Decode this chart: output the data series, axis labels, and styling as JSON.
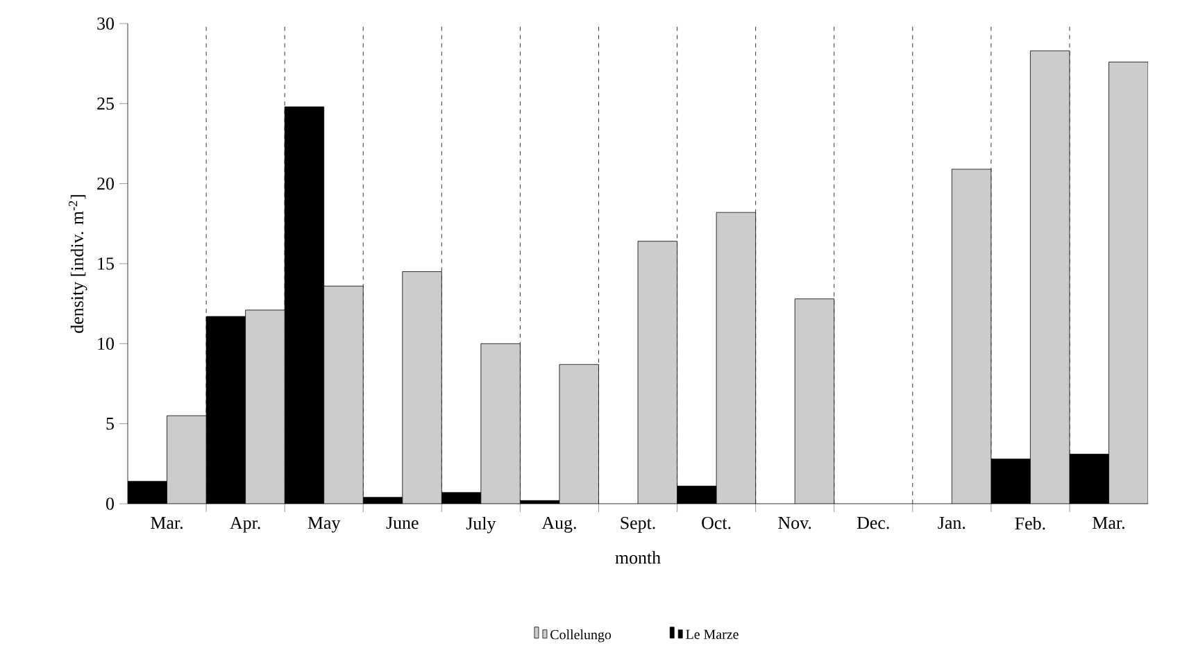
{
  "chart_data": {
    "type": "bar",
    "xlabel": "month",
    "ylabel": "density [indiv. m$^{-2}$]",
    "categories": [
      "Mar.",
      "Apr.",
      "May",
      "June",
      "July",
      "Aug.",
      "Sept.",
      "Oct.",
      "Nov.",
      "Dec.",
      "Jan.",
      "Feb.",
      "Mar."
    ],
    "series": [
      {
        "name": "Le Marze",
        "color": "#000000",
        "values": [
          1.4,
          11.7,
          24.8,
          0.4,
          0.7,
          0.2,
          null,
          1.1,
          null,
          null,
          null,
          2.8,
          3.1
        ]
      },
      {
        "name": "Collelungo",
        "color": "#cccccc",
        "values": [
          5.5,
          12.1,
          13.6,
          14.5,
          10.0,
          8.7,
          16.4,
          18.2,
          12.8,
          null,
          20.9,
          28.3,
          27.6
        ]
      }
    ],
    "ylim": [
      0,
      30
    ],
    "yticks": [
      0,
      5,
      10,
      15,
      20,
      25,
      30
    ],
    "grid": "x",
    "legend": "bottom"
  }
}
